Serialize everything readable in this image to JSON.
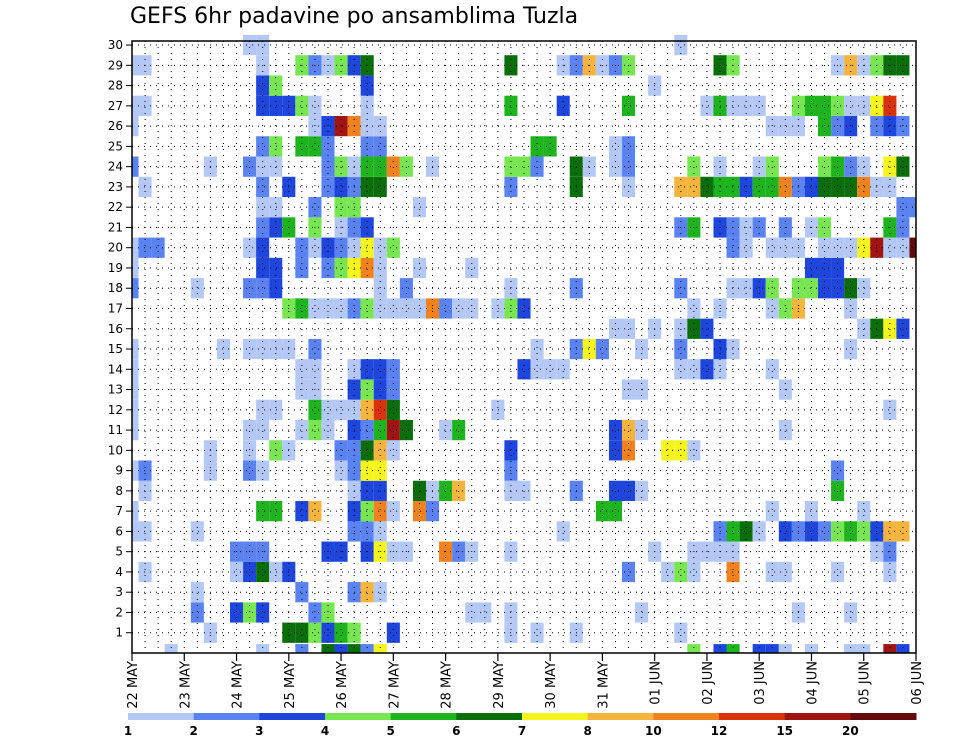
{
  "title": "GEFS 6hr padavine po ansamblima Tuzla",
  "chart_data": {
    "type": "heatmap",
    "title": "GEFS 6hr padavine po ansamblima Tuzla",
    "y_ticks": [
      1,
      2,
      3,
      4,
      5,
      6,
      7,
      8,
      9,
      10,
      11,
      12,
      13,
      14,
      15,
      16,
      17,
      18,
      19,
      20,
      21,
      22,
      23,
      24,
      25,
      26,
      27,
      28,
      29,
      30
    ],
    "ylim": [
      0,
      30
    ],
    "x_tick_labels": [
      "22 MAY",
      "23 MAY",
      "24 MAY",
      "25 MAY",
      "26 MAY",
      "27 MAY",
      "28 MAY",
      "29 MAY",
      "30 MAY",
      "31 MAY",
      "01 JUN",
      "02 JUN",
      "03 JUN",
      "04 JUN",
      "05 JUN",
      "06 JUN"
    ],
    "time_steps_per_day": 4,
    "num_time_steps": 61,
    "grid": true,
    "legend_placement": "bottom",
    "colorbar": {
      "labels": [
        "1",
        "2",
        "3",
        "4",
        "5",
        "6",
        "7",
        "8",
        "10",
        "12",
        "15",
        "20"
      ],
      "colors": [
        "#b4c8f5",
        "#5a82f0",
        "#1e46dc",
        "#78e650",
        "#1eb41e",
        "#0a6e0a",
        "#f5f51e",
        "#f5b43c",
        "#f0821e",
        "#dc320a",
        "#a01414",
        "#640a0a"
      ]
    },
    "levels": [
      {
        "member": 1,
        "values": {
          "7": 1,
          "13": 6,
          "14": 6,
          "15": 4,
          "16": 3,
          "17": 5,
          "18": 4,
          "21": 3,
          "30": 1,
          "32": 1,
          "35": 1,
          "43": 1
        }
      },
      {
        "member": 2,
        "values": {
          "6": 2,
          "9": 3,
          "10": 4,
          "11": 3,
          "15": 2,
          "16": 4,
          "27": 1,
          "28": 1,
          "30": 1,
          "40": 1,
          "52": 1,
          "56": 1
        }
      },
      {
        "member": 3,
        "values": {
          "6": 1,
          "14": 2,
          "18": 2,
          "19": 8,
          "20": 1
        }
      },
      {
        "member": 4,
        "values": {
          "2": 1,
          "9": 1,
          "10": 3,
          "11": 6,
          "12": 1,
          "13": 3,
          "39": 2,
          "42": 1,
          "43": 4,
          "44": 1,
          "47": 9,
          "50": 1,
          "51": 1,
          "55": 1,
          "59": 1
        }
      },
      {
        "member": 5,
        "values": {
          "9": 2,
          "10": 2,
          "11": 2,
          "16": 3,
          "17": 3,
          "19": 3,
          "20": 7,
          "21": 1,
          "22": 1,
          "25": 9,
          "26": 2,
          "27": 1,
          "30": 1,
          "41": 1,
          "44": 1,
          "45": 1,
          "46": 1,
          "47": 1,
          "58": 1,
          "59": 2
        }
      },
      {
        "member": 6,
        "values": {
          "1": 1,
          "2": 1,
          "6": 1,
          "18": 2,
          "19": 2,
          "20": 1,
          "34": 1,
          "46": 2,
          "47": 5,
          "48": 6,
          "49": 1,
          "51": 3,
          "52": 2,
          "53": 3,
          "54": 2,
          "55": 4,
          "56": 5,
          "57": 4,
          "58": 3,
          "59": 8,
          "60": 8
        }
      },
      {
        "member": 7,
        "values": {
          "1": 1,
          "11": 5,
          "12": 5,
          "14": 3,
          "15": 8,
          "18": 3,
          "19": 4,
          "20": 9,
          "21": 1,
          "23": 9,
          "24": 2,
          "37": 5,
          "38": 5,
          "50": 1,
          "53": 1,
          "57": 1
        }
      },
      {
        "member": 8,
        "values": {
          "2": 1,
          "18": 1,
          "19": 3,
          "20": 3,
          "23": 6,
          "24": 1,
          "25": 5,
          "26": 8,
          "30": 1,
          "31": 1,
          "35": 2,
          "38": 3,
          "39": 3,
          "40": 1,
          "55": 5
        }
      },
      {
        "member": 9,
        "values": {
          "1": 1,
          "2": 2,
          "7": 1,
          "10": 2,
          "11": 1,
          "17": 1,
          "18": 2,
          "19": 7,
          "20": 7,
          "30": 2,
          "55": 2
        }
      },
      {
        "member": 10,
        "values": {
          "7": 1,
          "10": 1,
          "12": 4,
          "13": 1,
          "17": 2,
          "18": 2,
          "19": 6,
          "20": 8,
          "21": 1,
          "30": 3,
          "38": 3,
          "39": 9,
          "42": 7,
          "43": 7,
          "44": 1
        }
      },
      {
        "member": 11,
        "values": {
          "1": 1,
          "10": 1,
          "11": 1,
          "14": 1,
          "15": 4,
          "16": 1,
          "18": 3,
          "19": 2,
          "20": 5,
          "21": 11,
          "22": 6,
          "25": 1,
          "26": 5,
          "38": 3,
          "39": 8,
          "40": 1,
          "51": 1
        }
      },
      {
        "member": 12,
        "values": {
          "1": 1,
          "11": 1,
          "12": 1,
          "15": 5,
          "16": 1,
          "17": 1,
          "18": 1,
          "19": 8,
          "20": 10,
          "21": 6,
          "29": 1,
          "59": 1
        }
      },
      {
        "member": 13,
        "values": {
          "1": 1,
          "14": 1,
          "15": 1,
          "18": 3,
          "19": 4,
          "20": 3,
          "21": 2,
          "39": 1,
          "40": 1,
          "51": 1
        }
      },
      {
        "member": 14,
        "values": {
          "1": 1,
          "14": 1,
          "15": 1,
          "18": 1,
          "19": 3,
          "20": 3,
          "21": 2,
          "31": 3,
          "32": 1,
          "33": 1,
          "34": 1,
          "43": 1,
          "44": 1,
          "45": 3,
          "46": 1,
          "50": 1
        }
      },
      {
        "member": 15,
        "values": {
          "1": 1,
          "8": 1,
          "10": 1,
          "11": 1,
          "12": 1,
          "13": 1,
          "15": 2,
          "32": 1,
          "35": 2,
          "36": 7,
          "37": 2,
          "40": 1,
          "43": 2,
          "46": 3,
          "47": 1,
          "56": 1
        }
      },
      {
        "member": 16,
        "values": {
          "38": 1,
          "39": 1,
          "41": 1,
          "43": 1,
          "44": 6,
          "45": 3,
          "57": 1,
          "58": 6,
          "59": 7,
          "60": 3
        }
      },
      {
        "member": 17,
        "values": {
          "13": 4,
          "14": 5,
          "15": 1,
          "16": 1,
          "17": 1,
          "18": 2,
          "19": 4,
          "20": 1,
          "21": 1,
          "22": 1,
          "23": 1,
          "24": 9,
          "25": 2,
          "26": 1,
          "27": 1,
          "29": 1,
          "30": 4,
          "31": 3,
          "44": 1,
          "46": 1,
          "50": 1,
          "51": 4,
          "52": 8,
          "56": 1
        }
      },
      {
        "member": 18,
        "values": {
          "1": 2,
          "6": 1,
          "10": 2,
          "11": 2,
          "12": 3,
          "20": 1,
          "22": 2,
          "30": 1,
          "35": 2,
          "43": 2,
          "47": 1,
          "48": 1,
          "49": 3,
          "50": 4,
          "52": 4,
          "53": 4,
          "54": 3,
          "55": 3,
          "56": 6,
          "57": 1
        }
      },
      {
        "member": 19,
        "values": {
          "1": 1,
          "11": 3,
          "12": 3,
          "14": 2,
          "16": 2,
          "17": 4,
          "18": 7,
          "19": 9,
          "20": 1,
          "23": 1,
          "27": 1,
          "53": 3,
          "54": 3,
          "55": 3
        }
      },
      {
        "member": 20,
        "values": {
          "1": 1,
          "2": 2,
          "3": 2,
          "10": 1,
          "11": 3,
          "14": 2,
          "15": 1,
          "16": 3,
          "17": 2,
          "18": 1,
          "19": 7,
          "20": 1,
          "21": 4,
          "47": 2,
          "48": 1,
          "50": 1,
          "51": 1,
          "52": 1,
          "54": 1,
          "55": 1,
          "56": 1,
          "57": 7,
          "58": 11,
          "59": 1,
          "60": 1,
          "61": 12
        }
      },
      {
        "member": 21,
        "values": {
          "11": 2,
          "12": 3,
          "13": 5,
          "15": 4,
          "17": 1,
          "18": 2,
          "19": 3,
          "43": 2,
          "44": 5,
          "46": 3,
          "47": 2,
          "48": 1,
          "49": 2,
          "51": 2,
          "53": 1,
          "54": 4,
          "59": 5,
          "60": 2
        }
      },
      {
        "member": 22,
        "values": {
          "11": 1,
          "12": 1,
          "15": 2,
          "17": 4,
          "18": 4,
          "23": 1,
          "60": 2,
          "61": 2
        }
      },
      {
        "member": 23,
        "values": {
          "2": 1,
          "11": 2,
          "13": 3,
          "16": 2,
          "17": 3,
          "18": 2,
          "19": 6,
          "20": 6,
          "30": 2,
          "35": 6,
          "39": 1,
          "43": 8,
          "44": 8,
          "45": 6,
          "46": 5,
          "47": 5,
          "48": 3,
          "49": 5,
          "50": 5,
          "51": 9,
          "52": 2,
          "53": 3,
          "54": 6,
          "55": 6,
          "56": 6,
          "57": 9,
          "58": 1,
          "59": 1
        }
      },
      {
        "member": 24,
        "values": {
          "1": 2,
          "7": 1,
          "10": 2,
          "11": 1,
          "12": 1,
          "16": 2,
          "17": 4,
          "18": 1,
          "19": 5,
          "20": 5,
          "21": 9,
          "22": 4,
          "24": 1,
          "30": 4,
          "31": 4,
          "32": 2,
          "35": 6,
          "36": 1,
          "38": 1,
          "39": 2,
          "44": 4,
          "46": 1,
          "49": 1,
          "50": 4,
          "54": 4,
          "55": 5,
          "56": 2,
          "57": 1,
          "59": 7,
          "60": 6
        }
      },
      {
        "member": 25,
        "values": {
          "11": 2,
          "12": 4,
          "14": 5,
          "15": 5,
          "16": 2,
          "19": 2,
          "20": 2,
          "32": 5,
          "33": 5,
          "38": 1,
          "39": 2
        }
      },
      {
        "member": 26,
        "values": {
          "1": 1,
          "15": 1,
          "16": 3,
          "17": 11,
          "18": 9,
          "19": 1,
          "20": 1,
          "50": 1,
          "51": 1,
          "52": 1,
          "54": 5,
          "55": 2,
          "56": 3,
          "58": 2,
          "59": 3,
          "60": 2
        }
      },
      {
        "member": 27,
        "values": {
          "1": 1,
          "2": 1,
          "11": 3,
          "12": 3,
          "13": 3,
          "14": 4,
          "15": 1,
          "19": 1,
          "30": 5,
          "34": 3,
          "39": 5,
          "45": 1,
          "46": 5,
          "47": 1,
          "48": 1,
          "49": 1,
          "52": 4,
          "53": 5,
          "54": 5,
          "55": 4,
          "56": 1,
          "57": 1,
          "58": 7,
          "59": 10
        }
      },
      {
        "member": 28,
        "values": {
          "11": 3,
          "12": 4,
          "19": 3,
          "41": 1
        }
      },
      {
        "member": 29,
        "values": {
          "1": 1,
          "2": 1,
          "11": 1,
          "14": 4,
          "15": 2,
          "16": 1,
          "17": 4,
          "18": 3,
          "19": 6,
          "30": 6,
          "34": 1,
          "35": 2,
          "36": 8,
          "37": 1,
          "38": 2,
          "39": 4,
          "46": 6,
          "47": 4,
          "55": 1,
          "56": 8,
          "57": 1,
          "58": 4,
          "59": 6,
          "60": 6
        }
      },
      {
        "member": 30,
        "values": {
          "10": 1,
          "11": 1,
          "43": 1
        }
      },
      {
        "member": 0,
        "values": {
          "4": 1,
          "11": 1,
          "14": 2,
          "16": 6,
          "17": 3,
          "18": 6,
          "19": 2,
          "20": 7,
          "44": 4,
          "46": 3,
          "47": 5,
          "49": 3,
          "50": 3,
          "51": 1,
          "53": 1,
          "56": 1,
          "57": 1,
          "59": 11,
          "60": 3
        }
      }
    ]
  }
}
